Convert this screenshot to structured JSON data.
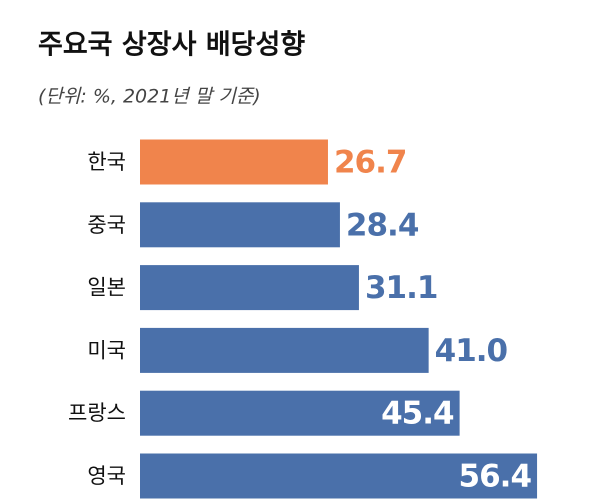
{
  "chart_data": {
    "type": "bar",
    "orientation": "horizontal",
    "title": "주요국 상장사 배당성향",
    "subtitle": "(단위: %, 2021년 말 기준)",
    "categories": [
      "한국",
      "중국",
      "일본",
      "미국",
      "프랑스",
      "영국"
    ],
    "values": [
      26.7,
      28.4,
      31.1,
      41.0,
      45.4,
      56.4
    ],
    "value_labels": [
      "26.7",
      "28.4",
      "31.1",
      "41.0",
      "45.4",
      "56.4"
    ],
    "colors": [
      "#f0844c",
      "#4a70aa",
      "#4a70aa",
      "#4a70aa",
      "#4a70aa",
      "#4a70aa"
    ]
  }
}
